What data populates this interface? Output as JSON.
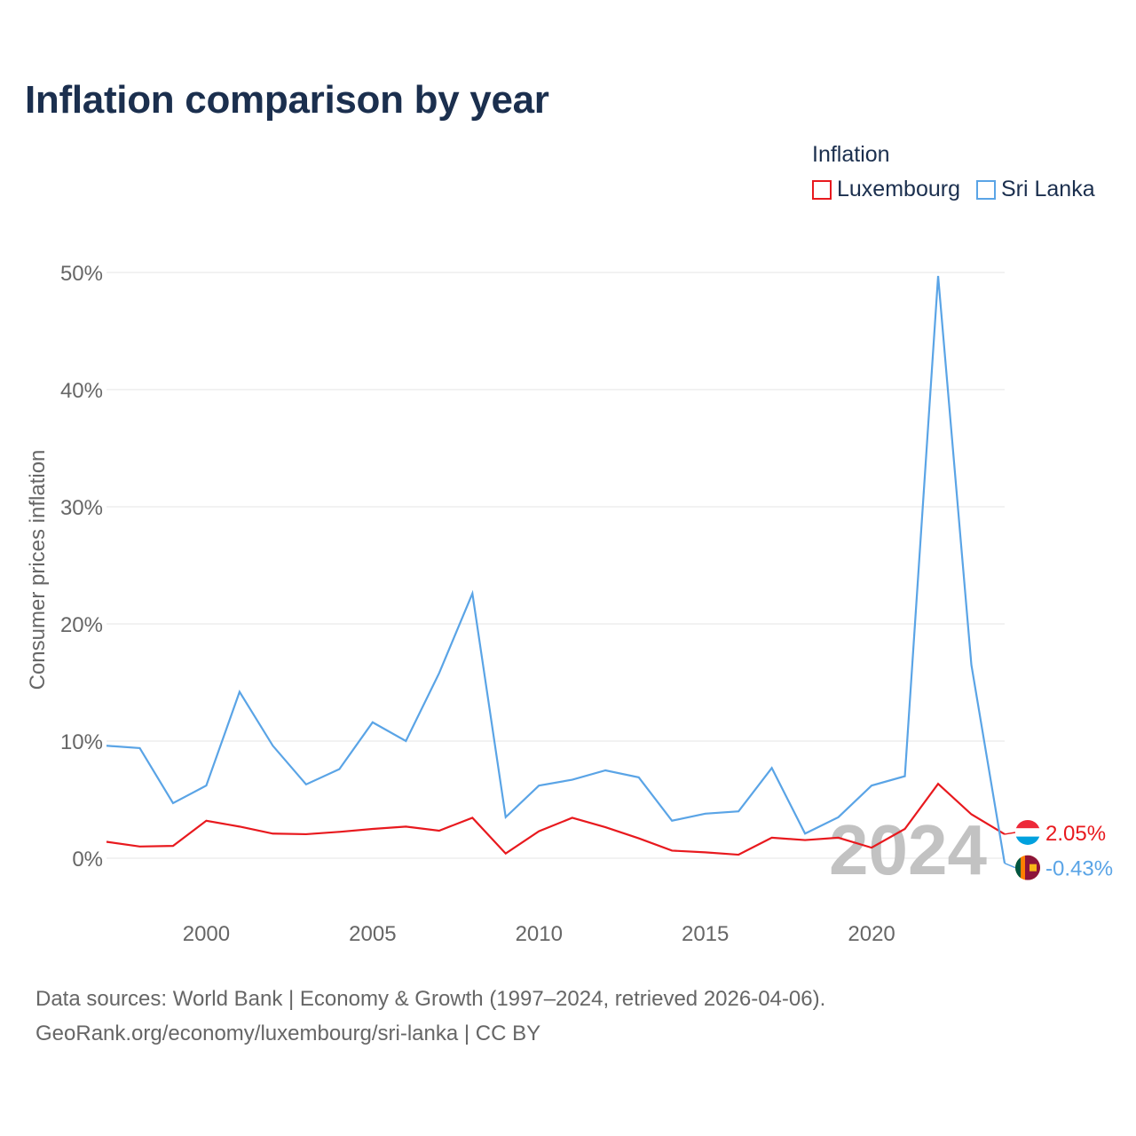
{
  "title": "Inflation comparison by year",
  "legend": {
    "title": "Inflation",
    "items": [
      {
        "name": "Luxembourg",
        "color": "#e8191e"
      },
      {
        "name": "Sri Lanka",
        "color": "#5aa4e6"
      }
    ]
  },
  "watermark_year": "2024",
  "source": {
    "line1": "Data sources: World Bank | Economy & Growth (1997–2024, retrieved 2026-04-06).",
    "line2": "GeoRank.org/economy/luxembourg/sri-lanka | CC BY"
  },
  "chart_data": {
    "type": "line",
    "title": "Inflation comparison by year",
    "xlabel": "",
    "ylabel": "Consumer prices inflation",
    "xlim": [
      1997,
      2024
    ],
    "ylim": [
      0,
      50
    ],
    "yticks": [
      0,
      10,
      20,
      30,
      40,
      50
    ],
    "ytick_labels": [
      "0%",
      "10%",
      "20%",
      "30%",
      "40%",
      "50%"
    ],
    "xticks": [
      2000,
      2005,
      2010,
      2015,
      2020
    ],
    "xtick_labels": [
      "2000",
      "2005",
      "2010",
      "2015",
      "2020"
    ],
    "grid": true,
    "x": [
      1997,
      1998,
      1999,
      2000,
      2001,
      2002,
      2003,
      2004,
      2005,
      2006,
      2007,
      2008,
      2009,
      2010,
      2011,
      2012,
      2013,
      2014,
      2015,
      2016,
      2017,
      2018,
      2019,
      2020,
      2021,
      2022,
      2023,
      2024
    ],
    "series": [
      {
        "name": "Luxembourg",
        "color": "#e8191e",
        "end_label": "2.05%",
        "values": [
          1.4,
          1.0,
          1.05,
          3.2,
          2.7,
          2.1,
          2.05,
          2.25,
          2.5,
          2.7,
          2.35,
          3.45,
          0.4,
          2.3,
          3.45,
          2.65,
          1.7,
          0.65,
          0.5,
          0.3,
          1.75,
          1.55,
          1.75,
          0.9,
          2.5,
          6.35,
          3.75,
          2.05
        ]
      },
      {
        "name": "Sri Lanka",
        "color": "#5aa4e6",
        "end_label": "-0.43%",
        "values": [
          9.6,
          9.4,
          4.7,
          6.2,
          14.2,
          9.6,
          6.3,
          7.6,
          11.6,
          10.0,
          15.8,
          22.6,
          3.5,
          6.2,
          6.7,
          7.5,
          6.9,
          3.2,
          3.8,
          4.0,
          7.7,
          2.1,
          3.5,
          6.2,
          7.0,
          49.7,
          16.5,
          -0.43
        ]
      }
    ]
  }
}
